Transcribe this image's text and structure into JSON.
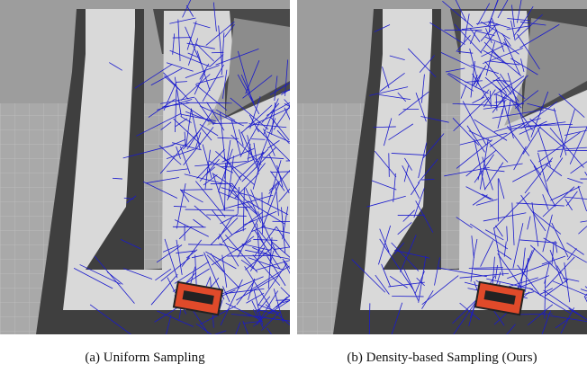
{
  "panels": [
    {
      "caption": "(a) Uniform Sampling"
    },
    {
      "caption": "(b) Density-based Sampling (Ours)"
    }
  ]
}
